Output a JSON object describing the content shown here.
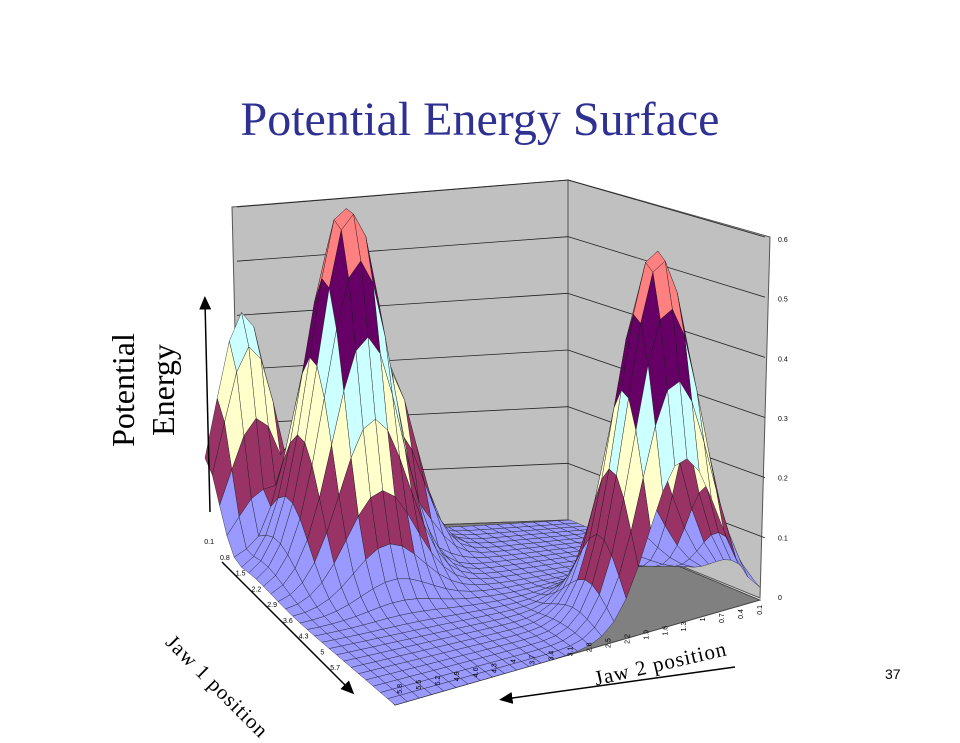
{
  "slide": {
    "title": "Potential Energy Surface",
    "page_number": "37"
  },
  "chart_data": {
    "type": "surface-3d",
    "title": "Potential Energy Surface",
    "zlabel": [
      "Potential",
      "Energy"
    ],
    "xlabel": "Jaw 1 position",
    "ylabel": "Jaw 2 position",
    "z_ticks": [
      "0",
      "0.1",
      "0.2",
      "0.3",
      "0.4",
      "0.5",
      "0.6"
    ],
    "zlim": [
      0,
      0.6
    ],
    "jaw1_ticks": [
      "0.1",
      "0.8",
      "1.5",
      "2.2",
      "2.9",
      "3.6",
      "4.3",
      "5",
      "5.7"
    ],
    "jaw2_ticks": [
      "5.8",
      "5.5",
      "5.2",
      "4.9",
      "4.6",
      "4.3",
      "4",
      "3.7",
      "3.4",
      "3.1",
      "2.8",
      "2.5",
      "2.2",
      "1.9",
      "1.6",
      "1.3",
      "1",
      "0.7",
      "0.4",
      "0.1"
    ],
    "color_bands": [
      {
        "range": [
          0.0,
          0.1
        ],
        "color": "#9999ff"
      },
      {
        "range": [
          0.1,
          0.2
        ],
        "color": "#993366"
      },
      {
        "range": [
          0.2,
          0.3
        ],
        "color": "#ffffcc"
      },
      {
        "range": [
          0.3,
          0.4
        ],
        "color": "#ccffff"
      },
      {
        "range": [
          0.4,
          0.5
        ],
        "color": "#660066"
      },
      {
        "range": [
          0.5,
          0.6
        ],
        "color": "#ff8080"
      }
    ],
    "peaks": [
      {
        "jaw1": 1.5,
        "jaw2": 4.3,
        "potential": 0.62
      },
      {
        "jaw1": 5.0,
        "jaw2": 1.3,
        "potential": 0.6
      },
      {
        "jaw1": 0.1,
        "jaw2": 5.2,
        "potential": 0.38
      },
      {
        "jaw1": 0.8,
        "jaw2": 3.4,
        "potential": 0.33
      }
    ],
    "wall_color": "#c0c0c0",
    "floor_color": "#808080",
    "grid": true
  }
}
